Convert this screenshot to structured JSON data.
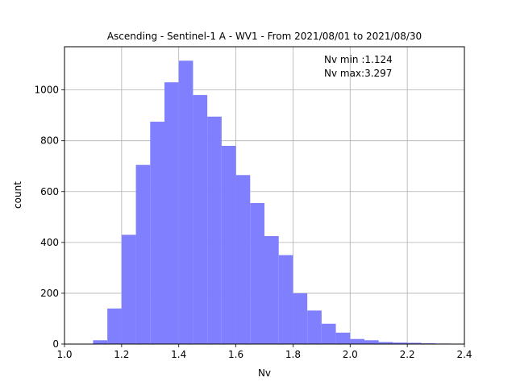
{
  "chart_data": {
    "type": "bar",
    "title": "Ascending - Sentinel-1 A - WV1 - From 2021/08/01 to 2021/08/30",
    "xlabel": "Nv",
    "ylabel": "count",
    "xlim": [
      1.0,
      2.4
    ],
    "ylim": [
      0,
      1170
    ],
    "grid": true,
    "bar_color": "#8080ff",
    "x_ticks": [
      1.0,
      1.2,
      1.4,
      1.6,
      1.8,
      2.0,
      2.2,
      2.4
    ],
    "x_tick_labels": [
      "1.0",
      "1.2",
      "1.4",
      "1.6",
      "1.8",
      "2.0",
      "2.2",
      "2.4"
    ],
    "y_ticks": [
      0,
      200,
      400,
      600,
      800,
      1000
    ],
    "y_tick_labels": [
      "0",
      "200",
      "400",
      "600",
      "800",
      "1000"
    ],
    "bin_edges": [
      1.1,
      1.15,
      1.2,
      1.25,
      1.3,
      1.35,
      1.4,
      1.45,
      1.5,
      1.55,
      1.6,
      1.65,
      1.7,
      1.75,
      1.8,
      1.85,
      1.9,
      1.95,
      2.0,
      2.05,
      2.1,
      2.15,
      2.2,
      2.25,
      2.3,
      2.35
    ],
    "values": [
      15,
      140,
      430,
      705,
      875,
      1030,
      1115,
      980,
      895,
      780,
      665,
      555,
      425,
      350,
      200,
      132,
      80,
      45,
      20,
      15,
      8,
      6,
      5,
      3,
      2
    ],
    "annotations": [
      "Nv min :1.124",
      "Nv max:3.297"
    ]
  }
}
